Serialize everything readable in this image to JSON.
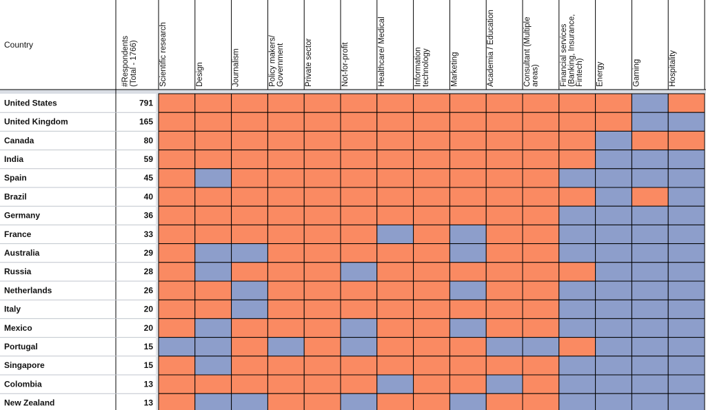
{
  "chart_data": {
    "type": "heatmap",
    "row_header": "Country",
    "count_header": "#Respondents (Total - 1766)",
    "columns": [
      "Scientific research",
      "Design",
      "Journalism",
      "Policy makers/ Government",
      "Private sector",
      "Not-for-profit",
      "Healthcare/ Medical",
      "Information technology",
      "Marketing",
      "Academia / Education",
      "Consultant (Multiple areas)",
      "Financial services (Banking, Insurance, Fintech)",
      "Energy",
      "Gaming",
      "Hospitality"
    ],
    "rows": [
      {
        "country": "United States",
        "count": 791,
        "values": [
          1,
          1,
          1,
          1,
          1,
          1,
          1,
          1,
          1,
          1,
          1,
          1,
          1,
          0,
          1
        ]
      },
      {
        "country": "United Kingdom",
        "count": 165,
        "values": [
          1,
          1,
          1,
          1,
          1,
          1,
          1,
          1,
          1,
          1,
          1,
          1,
          1,
          0,
          0
        ]
      },
      {
        "country": "Canada",
        "count": 80,
        "values": [
          1,
          1,
          1,
          1,
          1,
          1,
          1,
          1,
          1,
          1,
          1,
          1,
          0,
          1,
          1
        ]
      },
      {
        "country": "India",
        "count": 59,
        "values": [
          1,
          1,
          1,
          1,
          1,
          1,
          1,
          1,
          1,
          1,
          1,
          1,
          0,
          0,
          0
        ]
      },
      {
        "country": "Spain",
        "count": 45,
        "values": [
          1,
          0,
          1,
          1,
          1,
          1,
          1,
          1,
          1,
          1,
          1,
          0,
          0,
          0,
          0
        ]
      },
      {
        "country": "Brazil",
        "count": 40,
        "values": [
          1,
          1,
          1,
          1,
          1,
          1,
          1,
          1,
          1,
          1,
          1,
          1,
          0,
          1,
          0
        ]
      },
      {
        "country": "Germany",
        "count": 36,
        "values": [
          1,
          1,
          1,
          1,
          1,
          1,
          1,
          1,
          1,
          1,
          1,
          0,
          0,
          0,
          0
        ]
      },
      {
        "country": "France",
        "count": 33,
        "values": [
          1,
          1,
          1,
          1,
          1,
          1,
          0,
          1,
          0,
          1,
          1,
          0,
          0,
          0,
          0
        ]
      },
      {
        "country": "Australia",
        "count": 29,
        "values": [
          1,
          0,
          0,
          1,
          1,
          1,
          1,
          1,
          0,
          1,
          1,
          0,
          0,
          0,
          0
        ]
      },
      {
        "country": "Russia",
        "count": 28,
        "values": [
          1,
          0,
          1,
          1,
          1,
          0,
          1,
          1,
          1,
          1,
          1,
          1,
          0,
          0,
          0
        ]
      },
      {
        "country": "Netherlands",
        "count": 26,
        "values": [
          1,
          1,
          0,
          1,
          1,
          1,
          1,
          1,
          0,
          1,
          1,
          0,
          0,
          0,
          0
        ]
      },
      {
        "country": "Italy",
        "count": 20,
        "values": [
          1,
          1,
          0,
          1,
          1,
          1,
          1,
          1,
          1,
          1,
          1,
          0,
          0,
          0,
          0
        ]
      },
      {
        "country": "Mexico",
        "count": 20,
        "values": [
          1,
          0,
          1,
          1,
          1,
          0,
          1,
          1,
          0,
          1,
          1,
          0,
          0,
          0,
          0
        ]
      },
      {
        "country": "Portugal",
        "count": 15,
        "values": [
          0,
          0,
          1,
          0,
          1,
          0,
          1,
          1,
          1,
          0,
          0,
          1,
          0,
          0,
          0
        ]
      },
      {
        "country": "Singapore",
        "count": 15,
        "values": [
          1,
          0,
          1,
          1,
          1,
          1,
          1,
          1,
          1,
          1,
          1,
          0,
          0,
          0,
          0
        ]
      },
      {
        "country": "Colombia",
        "count": 13,
        "values": [
          1,
          1,
          1,
          1,
          1,
          1,
          0,
          1,
          1,
          0,
          1,
          0,
          0,
          0,
          0
        ]
      },
      {
        "country": "New Zealand",
        "count": 13,
        "values": [
          1,
          0,
          0,
          1,
          1,
          0,
          1,
          1,
          0,
          1,
          1,
          0,
          0,
          0,
          0
        ]
      }
    ],
    "colors": {
      "present": "#fa8a62",
      "absent": "#8d9ecb"
    }
  }
}
